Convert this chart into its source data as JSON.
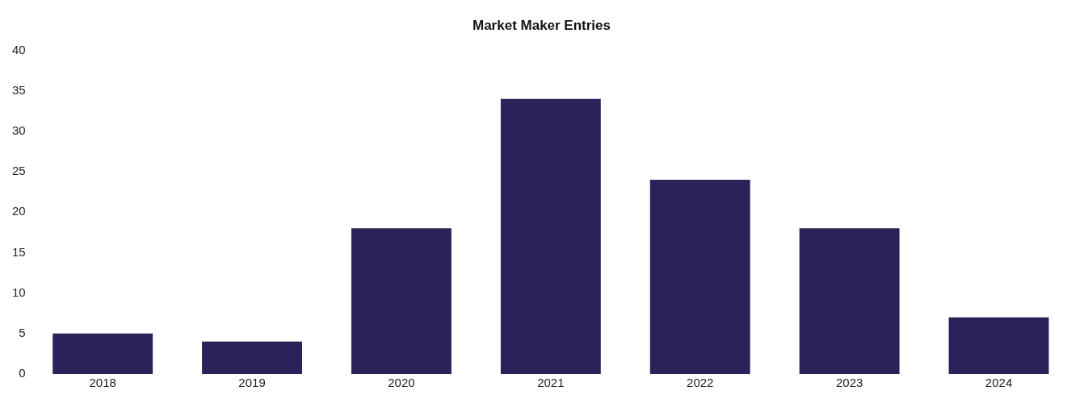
{
  "chart_data": {
    "type": "bar",
    "title": "Market Maker Entries",
    "categories": [
      "2018",
      "2019",
      "2020",
      "2021",
      "2022",
      "2023",
      "2024"
    ],
    "values": [
      5,
      4,
      18,
      34,
      24,
      18,
      7
    ],
    "color": "#2a2259",
    "ylim": [
      0,
      40
    ],
    "yticks": [
      0,
      5,
      10,
      15,
      20,
      25,
      30,
      35,
      40
    ],
    "grid": false,
    "legend": false
  }
}
